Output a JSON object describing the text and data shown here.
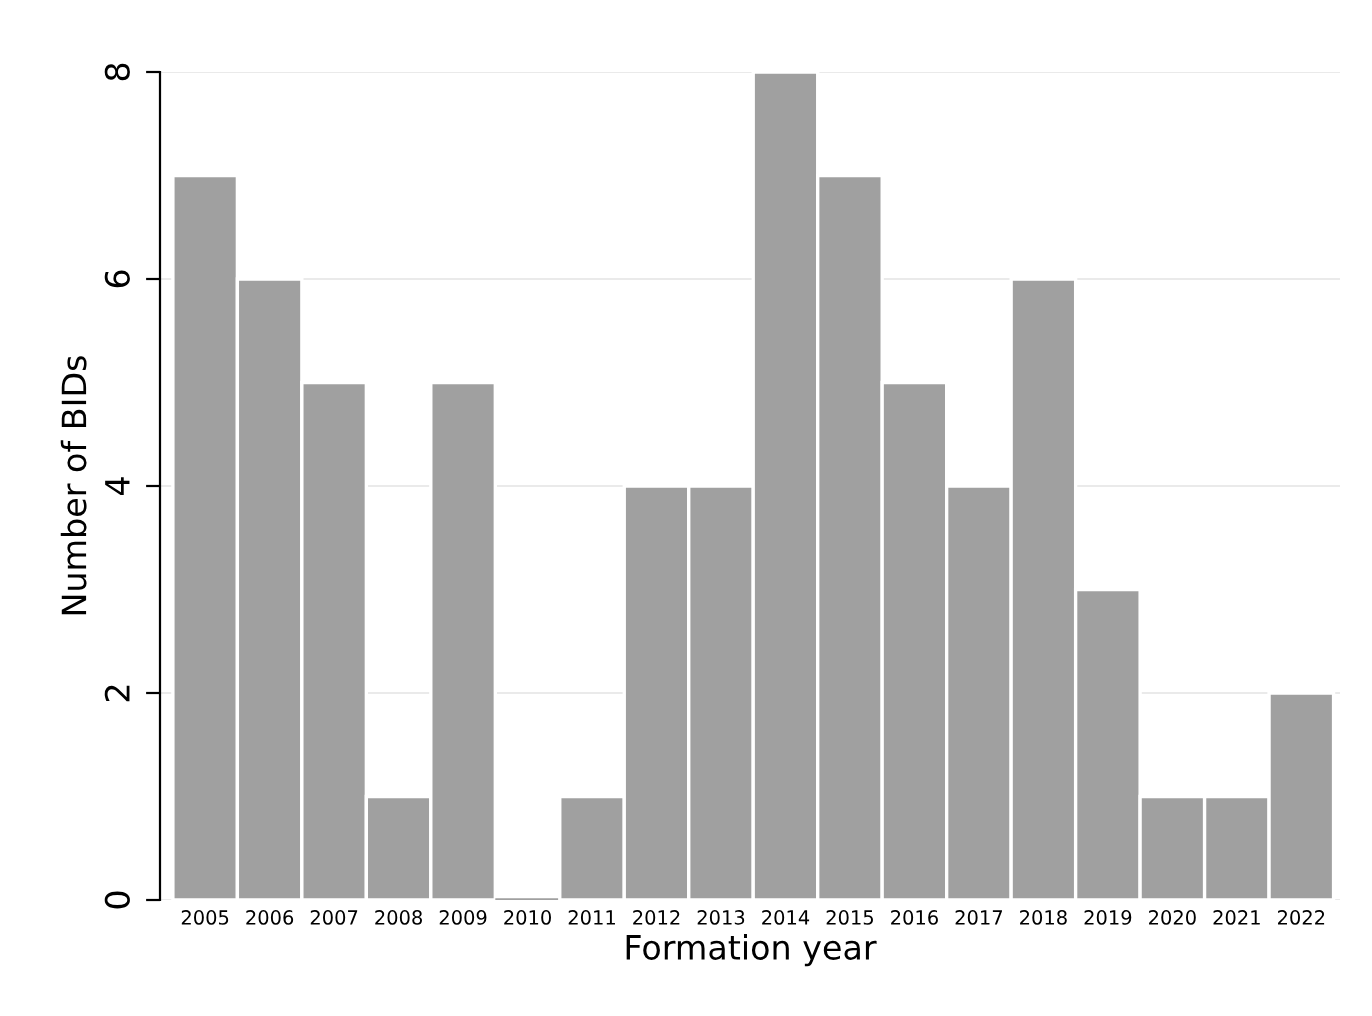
{
  "chart_data": {
    "type": "bar",
    "xlabel": "Formation year",
    "ylabel": "Number of BIDs",
    "categories": [
      "2005",
      "2006",
      "2007",
      "2008",
      "2009",
      "2010",
      "2011",
      "2012",
      "2013",
      "2014",
      "2015",
      "2016",
      "2017",
      "2018",
      "2019",
      "2020",
      "2021",
      "2022"
    ],
    "values": [
      7,
      6,
      5,
      1,
      5,
      0,
      1,
      4,
      4,
      8,
      7,
      5,
      4,
      6,
      3,
      1,
      1,
      2
    ],
    "color": "#a0a0a0",
    "ylim": [
      0,
      8
    ],
    "yticks": [
      0,
      2,
      4,
      6,
      8
    ],
    "grid": "y",
    "legend": false
  }
}
